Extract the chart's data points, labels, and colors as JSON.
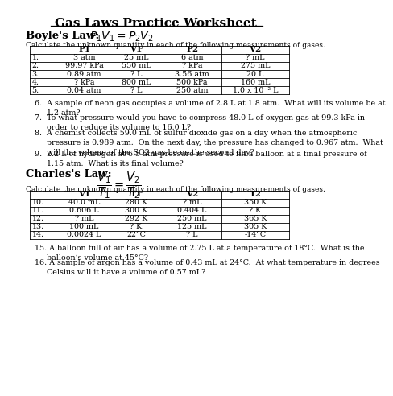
{
  "title": "Gas Laws Practice Worksheet",
  "boyles_law_label": "Boyle's Law:",
  "charles_law_label": "Charles's Law:",
  "table_instruction": "Calculate the unknown quantity in each of the following measurements of gases.",
  "boyles_headers": [
    "P1",
    "V1",
    "P2",
    "V2"
  ],
  "boyles_rows": [
    [
      "1.",
      "3 atm",
      "25 mL",
      "6 atm",
      "? mL"
    ],
    [
      "2.",
      "99.97 kPa",
      "550 mL",
      "? kPa",
      "275 mL"
    ],
    [
      "3.",
      "0.89 atm",
      "? L",
      "3.56 atm",
      "20 L"
    ],
    [
      "4.",
      "? kPa",
      "800 mL",
      "500 kPa",
      "160 mL"
    ],
    [
      "5.",
      "0.04 atm",
      "? L",
      "250 atm",
      "1.0 x 10⁻² L"
    ]
  ],
  "questions": [
    "6.  A sample of neon gas occupies a volume of 2.8 L at 1.8 atm.  What will its volume be at\n     1.2 atm?",
    "7.  To what pressure would you have to compress 48.0 L of oxygen gas at 99.3 kPa in\n     order to reduce its volume to 16.0 L?",
    "8.  A chemist collects 59.0 mL of sulfur dioxide gas on a day when the atmospheric\n     pressure is 0.989 atm.  On the next day, the pressure has changed to 0.967 atm.  What\n     will the volume of the SO2 gas be on the second day?",
    "9.  2.2 L of hydrogen at 6.5 atm pressure is used to fill a balloon at a final pressure of\n     1.15 atm.  What is its final volume?"
  ],
  "charles_headers": [
    "V1",
    "T1",
    "V2",
    "T2"
  ],
  "charles_rows": [
    [
      "10.",
      "40.0 mL",
      "280 K",
      "? mL",
      "350 K"
    ],
    [
      "11.",
      "0.606 L",
      "300 K",
      "0.404 L",
      "? K"
    ],
    [
      "12.",
      "? mL",
      "292 K",
      "250 mL",
      "365 K"
    ],
    [
      "13.",
      "100 mL",
      "? K",
      "125 mL",
      "305 K"
    ],
    [
      "14.",
      "0.0024 L",
      "22°C",
      "? L",
      "-14°C"
    ]
  ],
  "end_questions": [
    "15. A balloon full of air has a volume of 2.75 L at a temperature of 18°C.  What is the\n     balloon’s volume at 45°C?",
    "16. A sample of argon has a volume of 0.43 mL at 24°C.  At what temperature in degrees\n     Celsius will it have a volume of 0.57 mL?"
  ],
  "bg_color": "#ffffff",
  "text_color": "#000000",
  "font_size": 7.0,
  "title_font_size": 11
}
